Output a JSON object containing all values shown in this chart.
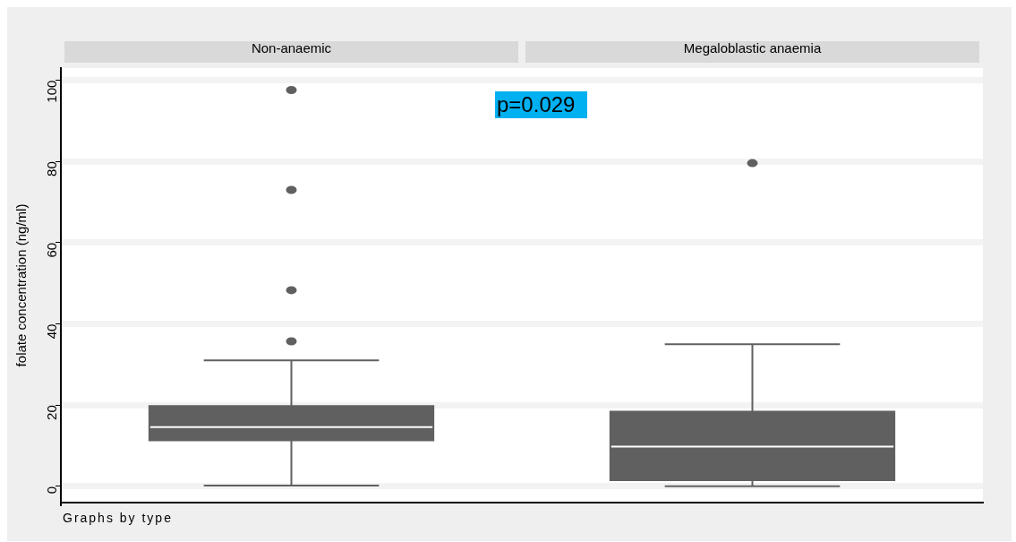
{
  "chart_data": {
    "type": "box",
    "ylabel": "folate concentration (ng/ml)",
    "categories": [
      "Non-anaemic",
      "Megaloblastic anaemia"
    ],
    "color": "#606060",
    "boxes": [
      {
        "low": 0.2,
        "q1": 11.1,
        "median": 14.6,
        "q3": 20,
        "high": 31,
        "outliers": [
          35.7,
          48.3,
          73,
          97.6
        ]
      },
      {
        "low": 0,
        "q1": 1.3,
        "median": 9.8,
        "q3": 18.6,
        "high": 35,
        "outliers": [
          79.6
        ]
      }
    ],
    "ylim": [
      -4,
      103
    ],
    "yticks": [
      0,
      20,
      40,
      60,
      80,
      100
    ],
    "grid": "y",
    "annotations": [
      "p=0.029",
      "Graphs by type"
    ]
  }
}
